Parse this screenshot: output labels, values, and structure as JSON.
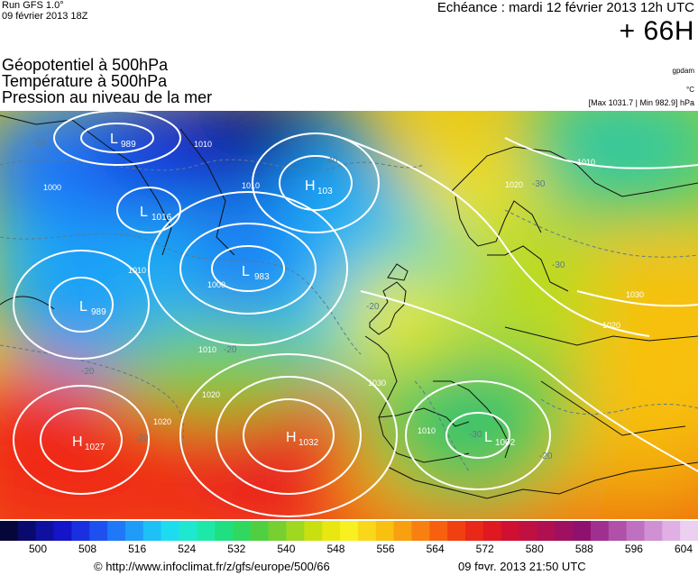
{
  "header": {
    "run_label": "Run GFS 1.0°",
    "run_date": "09 février 2013 18Z",
    "echeance": "Echéance : mardi 12 février 2013 12h UTC",
    "lead_time": "+ 66H",
    "variables": [
      "Géopotentiel à 500hPa",
      "Température à 500hPa",
      "Pression au niveau de la mer"
    ],
    "unit_geopotential": "gpdam",
    "unit_temperature": "°C",
    "max_min": "[Max 1031.7 | Min 982.9] hPa"
  },
  "map": {
    "pressure_centers": [
      {
        "type": "L",
        "value": "989"
      },
      {
        "type": "L",
        "value": "1016"
      },
      {
        "type": "H",
        "value": "103"
      },
      {
        "type": "L",
        "value": "983"
      },
      {
        "type": "L",
        "value": "989"
      },
      {
        "type": "H",
        "value": "1027"
      },
      {
        "type": "H",
        "value": "1032"
      },
      {
        "type": "L",
        "value": "1002"
      }
    ],
    "isobar_labels": [
      "1000",
      "1010",
      "1010",
      "1000",
      "1010",
      "1020",
      "1020",
      "1010",
      "1020",
      "1030",
      "1010",
      "1020",
      "1030",
      "1010"
    ],
    "temperature_labels": [
      "-30",
      "-40",
      "-30",
      "-30",
      "-20",
      "-20",
      "-20",
      "-20",
      "-30",
      "-20"
    ]
  },
  "colorbar": {
    "colors": [
      "#06063a",
      "#0a0a6e",
      "#1010a0",
      "#1414c8",
      "#1a30e0",
      "#1e50f0",
      "#1e78f8",
      "#1e9cf8",
      "#1ec0f8",
      "#1edcf0",
      "#1ee8d0",
      "#1ee8a8",
      "#1ee080",
      "#30d860",
      "#50d040",
      "#78d030",
      "#a0d820",
      "#c8e010",
      "#e8e810",
      "#f8f020",
      "#f8d818",
      "#f8c010",
      "#f8a010",
      "#f88010",
      "#f86010",
      "#f04010",
      "#e82818",
      "#e01820",
      "#d01030",
      "#c01040",
      "#b01050",
      "#a01060",
      "#901070",
      "#a03090",
      "#b050a8",
      "#c070c0",
      "#d090d4",
      "#e0b0e4",
      "#ecd0f0"
    ],
    "ticks": [
      "500",
      "508",
      "516",
      "524",
      "532",
      "540",
      "548",
      "556",
      "564",
      "572",
      "580",
      "588",
      "596",
      "604"
    ]
  },
  "footer": {
    "credit": "© http://www.infoclimat.fr/z/gfs/europe/500/66",
    "generated": "09 f¤vr. 2013 21:50 UTC"
  }
}
